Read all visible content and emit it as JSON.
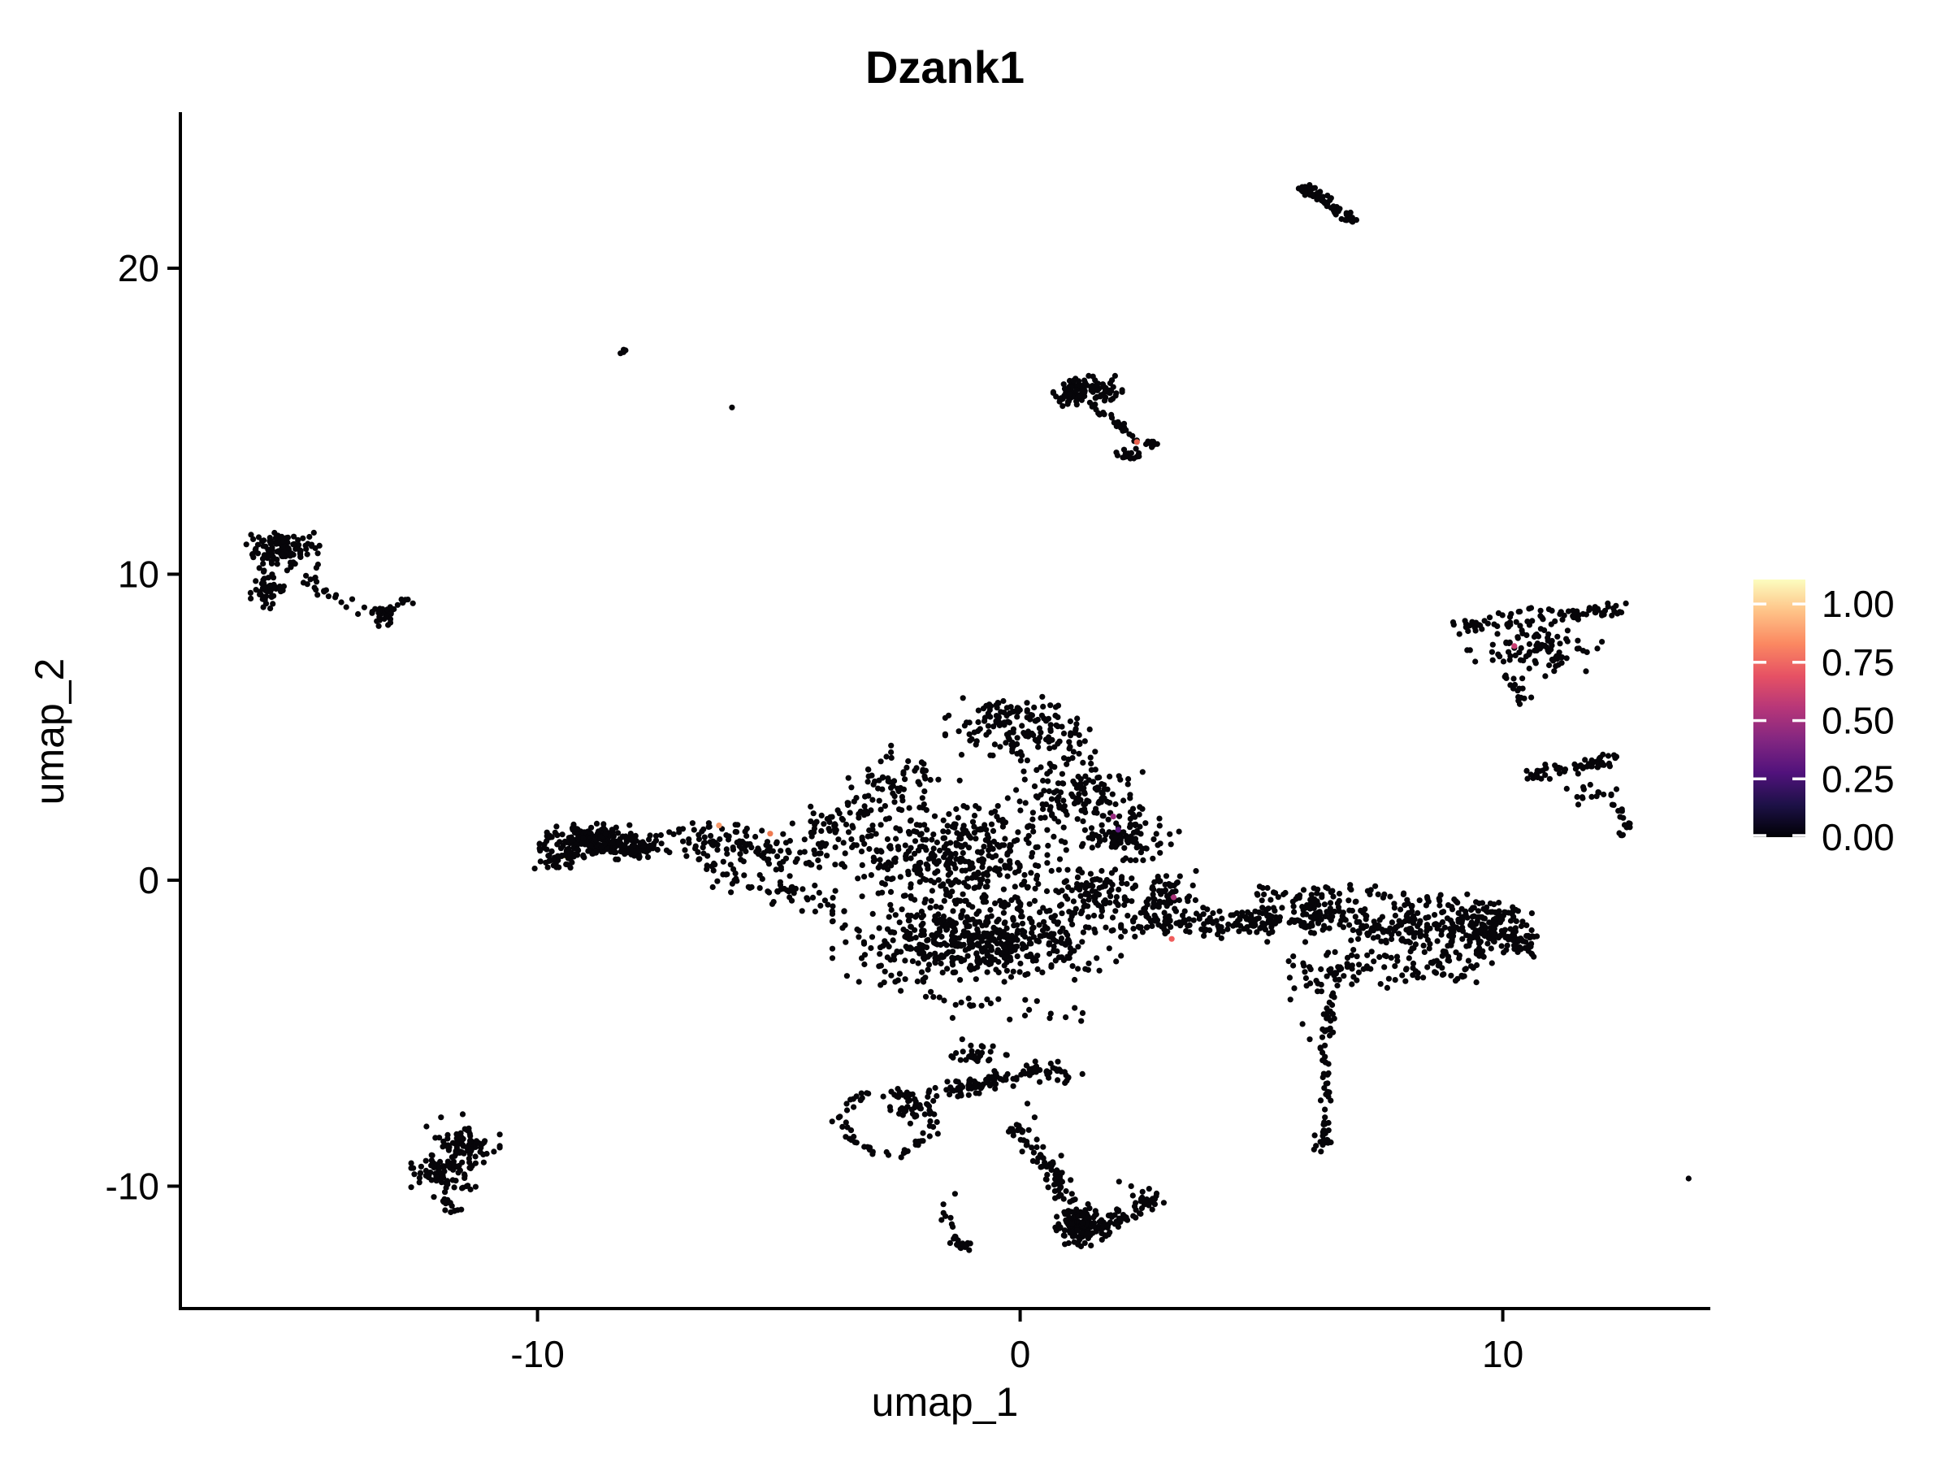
{
  "chart_data": {
    "type": "scatter",
    "title": "Dzank1",
    "xlabel": "umap_1",
    "ylabel": "umap_2",
    "x_ticks": [
      -10,
      0,
      10
    ],
    "y_ticks": [
      -10,
      0,
      10,
      20
    ],
    "x_range": [
      -17.4,
      14.3
    ],
    "y_range": [
      -14.0,
      25.1
    ],
    "grid": false,
    "point_color": "#060509",
    "point_radius_px": 3.6,
    "legend_position": "right",
    "colorbar": {
      "labels": [
        "1.00",
        "0.75",
        "0.50",
        "0.25",
        "0.00"
      ],
      "values": [
        1.0,
        0.75,
        0.5,
        0.25,
        0.0
      ],
      "vmax": 1.105,
      "colormap": "magma",
      "stops": [
        "#000004",
        "#1D1147",
        "#51127C",
        "#822681",
        "#B63679",
        "#E65164",
        "#FB8861",
        "#FEC287",
        "#FCFDBF"
      ]
    },
    "clusters": [
      {
        "type": "path",
        "pts": [
          [
            5.85,
            22.7
          ],
          [
            6.95,
            21.5
          ]
        ],
        "w": 0.14,
        "n": 55
      },
      {
        "type": "blob",
        "cx": 5.95,
        "cy": 22.55,
        "rx": 0.22,
        "ry": 0.22,
        "n": 14
      },
      {
        "type": "blob",
        "cx": -8.2,
        "cy": 17.3,
        "rx": 0.15,
        "ry": 0.07,
        "n": 4
      },
      {
        "type": "dots",
        "pts": [
          [
            -5.97,
            15.45
          ]
        ]
      },
      {
        "type": "blob",
        "cx": 1.4,
        "cy": 16.0,
        "rx": 0.62,
        "ry": 0.42,
        "n": 95
      },
      {
        "type": "blob",
        "cx": 0.98,
        "cy": 15.75,
        "rx": 0.3,
        "ry": 0.3,
        "n": 25
      },
      {
        "type": "path",
        "pts": [
          [
            1.45,
            15.6
          ],
          [
            2.45,
            14.37
          ]
        ],
        "w": 0.12,
        "n": 28
      },
      {
        "type": "blob",
        "cx": 2.27,
        "cy": 13.9,
        "rx": 0.24,
        "ry": 0.26,
        "n": 16
      },
      {
        "type": "blob",
        "cx": 2.68,
        "cy": 14.3,
        "rx": 0.2,
        "ry": 0.13,
        "n": 10
      },
      {
        "type": "blob",
        "cx": -15.3,
        "cy": 10.75,
        "rx": 0.68,
        "ry": 0.55,
        "n": 120
      },
      {
        "type": "blob",
        "cx": -15.6,
        "cy": 9.45,
        "rx": 0.3,
        "ry": 0.55,
        "n": 45
      },
      {
        "type": "path",
        "pts": [
          [
            -15.1,
            9.95
          ],
          [
            -13.4,
            8.75
          ]
        ],
        "w": 0.28,
        "n": 22
      },
      {
        "type": "blob",
        "cx": -13.2,
        "cy": 8.7,
        "rx": 0.28,
        "ry": 0.42,
        "n": 28
      },
      {
        "type": "blob",
        "cx": -12.7,
        "cy": 9.1,
        "rx": 0.17,
        "ry": 0.08,
        "n": 6
      },
      {
        "type": "path",
        "pts": [
          [
            8.95,
            8.2
          ],
          [
            10.8,
            8.6
          ],
          [
            12.55,
            8.85
          ]
        ],
        "w": 0.3,
        "n": 85
      },
      {
        "type": "blob",
        "cx": 10.7,
        "cy": 7.5,
        "rx": 1.25,
        "ry": 0.75,
        "n": 90
      },
      {
        "type": "path",
        "pts": [
          [
            10.15,
            6.7
          ],
          [
            10.5,
            5.8
          ]
        ],
        "w": 0.18,
        "n": 16
      },
      {
        "type": "path",
        "pts": [
          [
            10.5,
            3.35
          ],
          [
            11.5,
            3.75
          ],
          [
            12.45,
            3.95
          ]
        ],
        "w": 0.26,
        "n": 60
      },
      {
        "type": "blob",
        "cx": 11.9,
        "cy": 2.85,
        "rx": 0.5,
        "ry": 0.33,
        "n": 16
      },
      {
        "type": "path",
        "pts": [
          [
            12.3,
            2.5
          ],
          [
            12.58,
            1.9
          ],
          [
            12.4,
            1.4
          ]
        ],
        "w": 0.12,
        "n": 18
      },
      {
        "type": "blob",
        "cx": -8.75,
        "cy": 1.25,
        "rx": 1.05,
        "ry": 0.52,
        "n": 230
      },
      {
        "type": "blob",
        "cx": -9.6,
        "cy": 0.7,
        "rx": 0.5,
        "ry": 0.35,
        "n": 30
      },
      {
        "type": "blob",
        "cx": -7.9,
        "cy": 0.95,
        "rx": 0.5,
        "ry": 0.35,
        "n": 40
      },
      {
        "type": "path",
        "pts": [
          [
            -7.2,
            1.3
          ],
          [
            -5.6,
            1.15
          ],
          [
            -4.3,
            0.6
          ]
        ],
        "w": 0.55,
        "n": 110
      },
      {
        "type": "path",
        "pts": [
          [
            -6.6,
            0.5
          ],
          [
            -5.0,
            -0.2
          ],
          [
            -3.7,
            -0.9
          ]
        ],
        "w": 0.5,
        "n": 70
      },
      {
        "type": "blob",
        "cx": 0.0,
        "cy": 4.9,
        "rx": 1.35,
        "ry": 0.95,
        "n": 130
      },
      {
        "type": "blob",
        "cx": -0.3,
        "cy": 5.55,
        "rx": 0.85,
        "ry": 0.35,
        "n": 28
      },
      {
        "type": "path",
        "pts": [
          [
            -1.9,
            3.9
          ],
          [
            -3.2,
            2.2
          ],
          [
            -4.4,
            0.9
          ]
        ],
        "w": 0.85,
        "n": 140
      },
      {
        "type": "blob",
        "cx": -1.3,
        "cy": 0.7,
        "rx": 2.2,
        "ry": 1.5,
        "n": 390
      },
      {
        "type": "blob",
        "cx": 1.1,
        "cy": 2.7,
        "rx": 1.25,
        "ry": 1.3,
        "n": 150
      },
      {
        "type": "blob",
        "cx": 2.2,
        "cy": 1.4,
        "rx": 0.95,
        "ry": 0.65,
        "n": 85
      },
      {
        "type": "blob",
        "cx": 1.5,
        "cy": -0.4,
        "rx": 0.85,
        "ry": 0.8,
        "n": 95
      },
      {
        "type": "blob",
        "cx": 3.0,
        "cy": -0.5,
        "rx": 0.6,
        "ry": 0.7,
        "n": 70
      },
      {
        "type": "blob",
        "cx": -0.9,
        "cy": -2.0,
        "rx": 2.6,
        "ry": 1.15,
        "n": 520
      },
      {
        "type": "path",
        "pts": [
          [
            2.2,
            -1.3
          ],
          [
            3.5,
            -1.45
          ],
          [
            4.4,
            -1.35
          ]
        ],
        "w": 0.45,
        "n": 90
      },
      {
        "type": "path",
        "pts": [
          [
            -3.0,
            -3.5
          ],
          [
            -0.5,
            -4.1
          ],
          [
            1.4,
            -4.4
          ]
        ],
        "w": 0.35,
        "n": 30
      },
      {
        "type": "path",
        "pts": [
          [
            4.4,
            -1.25
          ],
          [
            5.3,
            -1.35
          ]
        ],
        "w": 0.35,
        "n": 55
      },
      {
        "type": "blob",
        "cx": 6.1,
        "cy": -1.1,
        "rx": 1.0,
        "ry": 0.8,
        "n": 110
      },
      {
        "type": "blob",
        "cx": 7.7,
        "cy": -1.5,
        "rx": 1.2,
        "ry": 0.9,
        "n": 130
      },
      {
        "type": "blob",
        "cx": 9.5,
        "cy": -1.6,
        "rx": 1.05,
        "ry": 0.9,
        "n": 170
      },
      {
        "type": "path",
        "pts": [
          [
            5.0,
            -0.45
          ],
          [
            7.0,
            -0.3
          ],
          [
            9.0,
            -0.7
          ],
          [
            10.3,
            -1.3
          ]
        ],
        "w": 0.3,
        "n": 60
      },
      {
        "type": "blob",
        "cx": 6.6,
        "cy": -3.0,
        "rx": 1.3,
        "ry": 0.55,
        "n": 60
      },
      {
        "type": "blob",
        "cx": 8.8,
        "cy": -2.9,
        "rx": 0.9,
        "ry": 0.5,
        "n": 45
      },
      {
        "type": "blob",
        "cx": 10.35,
        "cy": -2.0,
        "rx": 0.38,
        "ry": 0.5,
        "n": 40
      },
      {
        "type": "path",
        "pts": [
          [
            6.45,
            -3.6
          ],
          [
            6.3,
            -5.6
          ],
          [
            6.4,
            -7.4
          ],
          [
            6.3,
            -8.6
          ]
        ],
        "w": 0.14,
        "n": 55
      },
      {
        "type": "blob",
        "cx": 6.32,
        "cy": -8.5,
        "rx": 0.2,
        "ry": 0.32,
        "n": 14
      },
      {
        "type": "dots",
        "pts": [
          [
            5.6,
            -3.9
          ],
          [
            5.85,
            -4.7
          ],
          [
            6.0,
            -5.2
          ],
          [
            13.85,
            -9.75
          ]
        ]
      },
      {
        "type": "ring",
        "cx": -2.77,
        "cy": -7.9,
        "rx": 0.95,
        "ry": 1.02,
        "t": 0.16,
        "n": 75
      },
      {
        "type": "blob",
        "cx": -2.3,
        "cy": -7.55,
        "rx": 0.42,
        "ry": 0.35,
        "n": 22
      },
      {
        "type": "path",
        "pts": [
          [
            -1.85,
            -7.15
          ],
          [
            -0.6,
            -6.5
          ],
          [
            0.55,
            -6.2
          ],
          [
            1.05,
            -6.45
          ]
        ],
        "w": 0.3,
        "n": 110
      },
      {
        "type": "blob",
        "cx": -0.85,
        "cy": -5.75,
        "rx": 0.5,
        "ry": 0.3,
        "n": 30
      },
      {
        "type": "dots",
        "pts": [
          [
            -1.4,
            -4.5
          ],
          [
            -0.8,
            -4.1
          ],
          [
            -1.2,
            -5.2
          ],
          [
            0.15,
            -7.3
          ],
          [
            0.3,
            -7.75
          ]
        ]
      },
      {
        "type": "path",
        "pts": [
          [
            -0.1,
            -8.05
          ],
          [
            0.5,
            -9.3
          ],
          [
            1.1,
            -10.55
          ]
        ],
        "w": 0.24,
        "n": 75
      },
      {
        "type": "blob",
        "cx": 1.27,
        "cy": -11.3,
        "rx": 0.5,
        "ry": 0.62,
        "n": 140
      },
      {
        "type": "path",
        "pts": [
          [
            1.7,
            -11.4
          ],
          [
            2.5,
            -10.6
          ],
          [
            2.85,
            -10.25
          ]
        ],
        "w": 0.28,
        "n": 55
      },
      {
        "type": "dots",
        "pts": [
          [
            2.05,
            -9.85
          ],
          [
            2.3,
            -10.0
          ],
          [
            0.85,
            -9.0
          ]
        ]
      },
      {
        "type": "path",
        "pts": [
          [
            -1.65,
            -10.5
          ],
          [
            -1.3,
            -11.8
          ]
        ],
        "w": 0.12,
        "n": 12
      },
      {
        "type": "blob",
        "cx": -1.22,
        "cy": -11.95,
        "rx": 0.2,
        "ry": 0.24,
        "n": 14
      },
      {
        "type": "dots",
        "pts": [
          [
            -1.35,
            -10.25
          ]
        ]
      },
      {
        "type": "blob",
        "cx": -11.45,
        "cy": -8.65,
        "rx": 0.58,
        "ry": 0.5,
        "n": 75
      },
      {
        "type": "blob",
        "cx": -11.95,
        "cy": -9.5,
        "rx": 0.58,
        "ry": 0.62,
        "n": 85
      },
      {
        "type": "path",
        "pts": [
          [
            -12.1,
            -10.3
          ],
          [
            -11.65,
            -10.85
          ]
        ],
        "w": 0.18,
        "n": 16
      },
      {
        "type": "dots",
        "pts": [
          [
            -12.0,
            -7.75
          ],
          [
            -11.55,
            -7.65
          ],
          [
            -12.3,
            -8.05
          ]
        ]
      }
    ],
    "highlight_points": [
      {
        "x": -9.43,
        "y": 0.8,
        "value": 1.0,
        "color": "#F2E65E",
        "layer": "under"
      },
      {
        "x": -6.24,
        "y": 1.79,
        "value": 0.85,
        "color": "#F89B6C",
        "layer": "over"
      },
      {
        "x": -5.18,
        "y": 1.52,
        "value": 0.8,
        "color": "#EF7B51",
        "layer": "over"
      },
      {
        "x": 2.42,
        "y": 14.32,
        "value": 0.72,
        "color": "#E9634F",
        "layer": "over"
      },
      {
        "x": 1.93,
        "y": 2.08,
        "value": 0.45,
        "color": "#992B80",
        "layer": "over"
      },
      {
        "x": 2.03,
        "y": 1.65,
        "value": 0.3,
        "color": "#5B167E",
        "layer": "over"
      },
      {
        "x": 3.18,
        "y": -0.56,
        "value": 0.5,
        "color": "#A93379",
        "layer": "over"
      },
      {
        "x": 3.14,
        "y": -1.92,
        "value": 0.7,
        "color": "#EF5D5C",
        "layer": "over"
      },
      {
        "x": 10.24,
        "y": 7.65,
        "value": 0.55,
        "color": "#CA3E72",
        "layer": "over"
      }
    ]
  }
}
